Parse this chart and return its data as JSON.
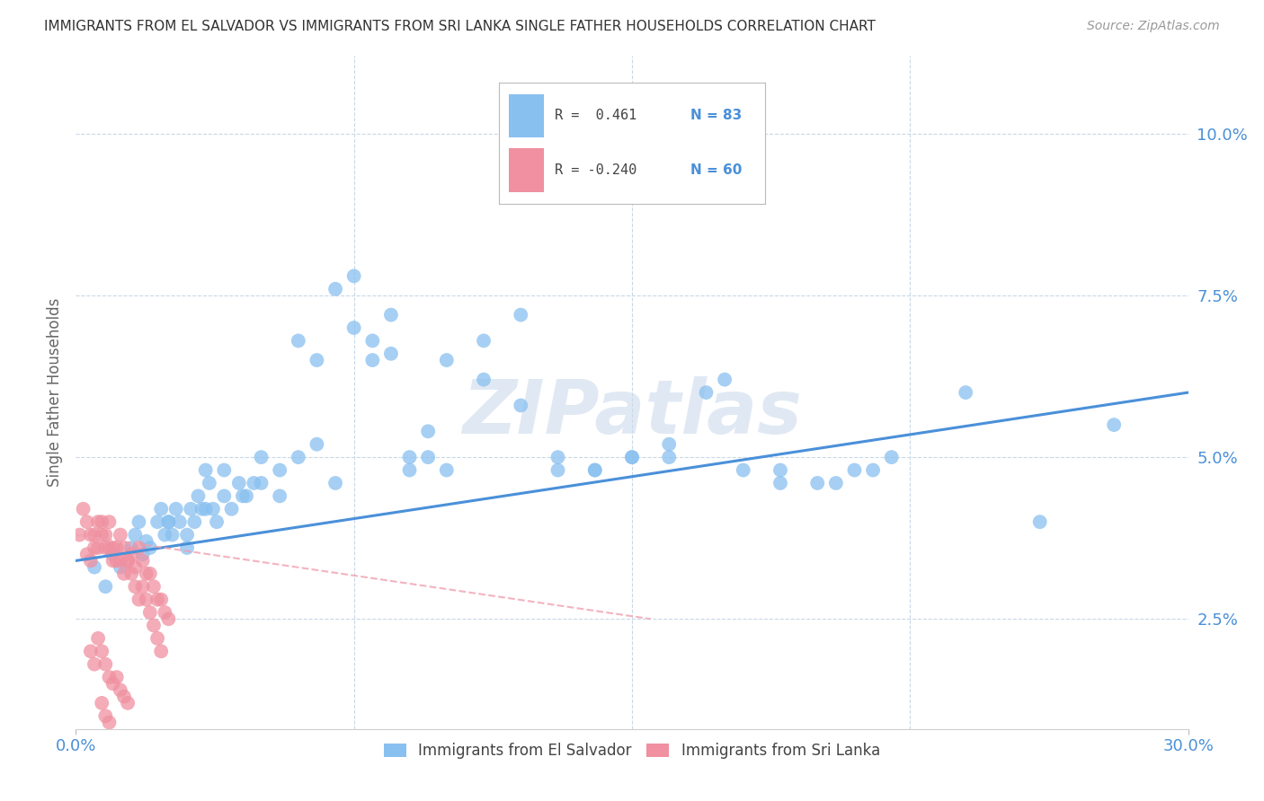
{
  "title": "IMMIGRANTS FROM EL SALVADOR VS IMMIGRANTS FROM SRI LANKA SINGLE FATHER HOUSEHOLDS CORRELATION CHART",
  "source": "Source: ZipAtlas.com",
  "ylabel": "Single Father Households",
  "ytick_labels": [
    "2.5%",
    "5.0%",
    "7.5%",
    "10.0%"
  ],
  "ytick_values": [
    0.025,
    0.05,
    0.075,
    0.1
  ],
  "xlim": [
    0.0,
    0.3
  ],
  "ylim": [
    0.008,
    0.112
  ],
  "legend_blue_r": "R =  0.461",
  "legend_blue_n": "N = 83",
  "legend_pink_r": "R = -0.240",
  "legend_pink_n": "N = 60",
  "blue_color": "#88c0f0",
  "pink_color": "#f090a0",
  "blue_line_color": "#4a90d9",
  "pink_line_color": "#f0a0b0",
  "text_color": "#4a90d9",
  "watermark": "ZIPatlas",
  "blue_scatter_x": [
    0.005,
    0.008,
    0.01,
    0.012,
    0.015,
    0.016,
    0.017,
    0.018,
    0.019,
    0.02,
    0.022,
    0.023,
    0.024,
    0.025,
    0.026,
    0.027,
    0.028,
    0.03,
    0.031,
    0.032,
    0.033,
    0.034,
    0.035,
    0.036,
    0.037,
    0.038,
    0.04,
    0.042,
    0.044,
    0.046,
    0.048,
    0.05,
    0.055,
    0.06,
    0.065,
    0.07,
    0.075,
    0.08,
    0.085,
    0.09,
    0.095,
    0.1,
    0.11,
    0.12,
    0.13,
    0.14,
    0.15,
    0.16,
    0.17,
    0.18,
    0.19,
    0.2,
    0.21,
    0.22,
    0.24,
    0.26,
    0.28,
    0.025,
    0.03,
    0.035,
    0.04,
    0.045,
    0.05,
    0.055,
    0.06,
    0.065,
    0.07,
    0.075,
    0.08,
    0.085,
    0.09,
    0.095,
    0.1,
    0.11,
    0.12,
    0.13,
    0.14,
    0.15,
    0.16,
    0.175,
    0.19,
    0.205,
    0.215
  ],
  "blue_scatter_y": [
    0.033,
    0.03,
    0.035,
    0.033,
    0.036,
    0.038,
    0.04,
    0.035,
    0.037,
    0.036,
    0.04,
    0.042,
    0.038,
    0.04,
    0.038,
    0.042,
    0.04,
    0.038,
    0.042,
    0.04,
    0.044,
    0.042,
    0.048,
    0.046,
    0.042,
    0.04,
    0.044,
    0.042,
    0.046,
    0.044,
    0.046,
    0.05,
    0.048,
    0.05,
    0.052,
    0.046,
    0.078,
    0.068,
    0.066,
    0.048,
    0.05,
    0.048,
    0.062,
    0.058,
    0.05,
    0.048,
    0.05,
    0.052,
    0.06,
    0.048,
    0.048,
    0.046,
    0.048,
    0.05,
    0.06,
    0.04,
    0.055,
    0.04,
    0.036,
    0.042,
    0.048,
    0.044,
    0.046,
    0.044,
    0.068,
    0.065,
    0.076,
    0.07,
    0.065,
    0.072,
    0.05,
    0.054,
    0.065,
    0.068,
    0.072,
    0.048,
    0.048,
    0.05,
    0.05,
    0.062,
    0.046,
    0.046,
    0.048
  ],
  "pink_scatter_x": [
    0.001,
    0.002,
    0.003,
    0.004,
    0.005,
    0.006,
    0.007,
    0.008,
    0.009,
    0.01,
    0.011,
    0.012,
    0.013,
    0.014,
    0.015,
    0.016,
    0.017,
    0.018,
    0.019,
    0.02,
    0.021,
    0.022,
    0.023,
    0.024,
    0.025,
    0.003,
    0.004,
    0.005,
    0.006,
    0.007,
    0.008,
    0.009,
    0.01,
    0.011,
    0.012,
    0.013,
    0.014,
    0.015,
    0.016,
    0.017,
    0.018,
    0.019,
    0.02,
    0.021,
    0.022,
    0.023,
    0.004,
    0.005,
    0.006,
    0.007,
    0.008,
    0.009,
    0.01,
    0.011,
    0.012,
    0.013,
    0.014,
    0.007,
    0.008,
    0.009
  ],
  "pink_scatter_y": [
    0.038,
    0.042,
    0.04,
    0.038,
    0.036,
    0.04,
    0.038,
    0.036,
    0.04,
    0.036,
    0.034,
    0.038,
    0.036,
    0.034,
    0.035,
    0.033,
    0.036,
    0.034,
    0.032,
    0.032,
    0.03,
    0.028,
    0.028,
    0.026,
    0.025,
    0.035,
    0.034,
    0.038,
    0.036,
    0.04,
    0.038,
    0.036,
    0.034,
    0.036,
    0.034,
    0.032,
    0.034,
    0.032,
    0.03,
    0.028,
    0.03,
    0.028,
    0.026,
    0.024,
    0.022,
    0.02,
    0.02,
    0.018,
    0.022,
    0.02,
    0.018,
    0.016,
    0.015,
    0.016,
    0.014,
    0.013,
    0.012,
    0.012,
    0.01,
    0.009
  ],
  "blue_trend_x": [
    0.0,
    0.3
  ],
  "blue_trend_y": [
    0.034,
    0.06
  ],
  "pink_trend_x": [
    0.0,
    0.155
  ],
  "pink_trend_y": [
    0.038,
    0.025
  ]
}
